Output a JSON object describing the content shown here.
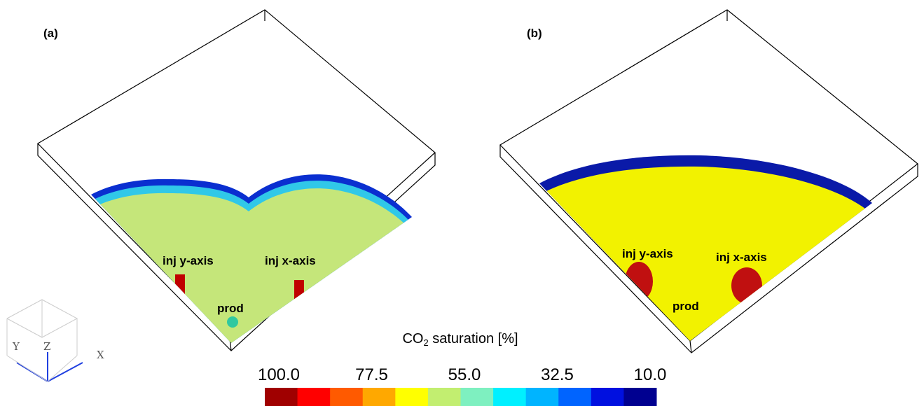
{
  "panels": [
    {
      "label": "(a)",
      "wells": [
        "inj y-axis",
        "inj x-axis",
        "prod"
      ]
    },
    {
      "label": "(b)",
      "wells": [
        "inj y-axis",
        "inj x-axis",
        "prod"
      ]
    }
  ],
  "colorbar": {
    "title": "CO",
    "title_sub": "2",
    "title_rest": " saturation [%]",
    "ticks": [
      "100.0",
      "77.5",
      "55.0",
      "32.5",
      "10.0"
    ],
    "colors": [
      "#a00000",
      "#ff0000",
      "#ff5a00",
      "#ffa800",
      "#ffff00",
      "#c2ee70",
      "#7ef0c0",
      "#00f0ff",
      "#00b4ff",
      "#0064ff",
      "#0010e0",
      "#000090"
    ]
  },
  "axes_triad": [
    "Y",
    "Z",
    "X"
  ]
}
